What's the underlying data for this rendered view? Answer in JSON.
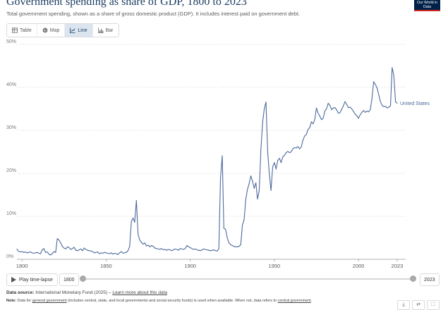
{
  "header": {
    "title": "Government spending as share of GDP, 1800 to 2023",
    "subtitle": "Total government spending, shown as a share of gross domestic product (GDP). It includes interest paid on government debt.",
    "logo": "Our World in Data"
  },
  "tabs": [
    {
      "label": "Table",
      "icon": "table-icon"
    },
    {
      "label": "Map",
      "icon": "globe-icon"
    },
    {
      "label": "Line",
      "icon": "line-chart-icon",
      "active": true
    },
    {
      "label": "Bar",
      "icon": "bar-chart-icon"
    }
  ],
  "chart_data": {
    "type": "line",
    "title": "Government spending as share of GDP, 1800 to 2023",
    "xlabel": "",
    "ylabel": "",
    "xlim": [
      1797,
      2023
    ],
    "ylim": [
      0,
      50
    ],
    "x_ticks": [
      "1800",
      "1850",
      "1900",
      "1950",
      "2000",
      "2023"
    ],
    "y_ticks": [
      "0%",
      "10%",
      "20%",
      "30%",
      "40%",
      "50%"
    ],
    "grid": true,
    "series": [
      {
        "name": "United States",
        "color": "#4c6a9c",
        "points": [
          [
            1797,
            2.4
          ],
          [
            1798,
            1.8
          ],
          [
            1799,
            1.7
          ],
          [
            1800,
            1.8
          ],
          [
            1801,
            1.6
          ],
          [
            1802,
            1.7
          ],
          [
            1803,
            1.5
          ],
          [
            1804,
            1.6
          ],
          [
            1805,
            1.7
          ],
          [
            1806,
            1.5
          ],
          [
            1807,
            1.4
          ],
          [
            1808,
            1.5
          ],
          [
            1809,
            1.6
          ],
          [
            1810,
            1.4
          ],
          [
            1811,
            1.3
          ],
          [
            1812,
            2.2
          ],
          [
            1813,
            2.5
          ],
          [
            1814,
            1.6
          ],
          [
            1815,
            1.7
          ],
          [
            1816,
            1.2
          ],
          [
            1817,
            1.0
          ],
          [
            1818,
            1.3
          ],
          [
            1819,
            1.8
          ],
          [
            1820,
            1.6
          ],
          [
            1821,
            4.8
          ],
          [
            1822,
            4.5
          ],
          [
            1823,
            3.8
          ],
          [
            1824,
            3.0
          ],
          [
            1825,
            2.6
          ],
          [
            1826,
            2.4
          ],
          [
            1827,
            2.9
          ],
          [
            1828,
            2.7
          ],
          [
            1829,
            2.3
          ],
          [
            1830,
            2.5
          ],
          [
            1831,
            2.8
          ],
          [
            1832,
            2.1
          ],
          [
            1833,
            2.0
          ],
          [
            1834,
            2.2
          ],
          [
            1835,
            2.4
          ],
          [
            1836,
            2.0
          ],
          [
            1837,
            2.6
          ],
          [
            1838,
            2.3
          ],
          [
            1839,
            2.1
          ],
          [
            1840,
            2.0
          ],
          [
            1841,
            1.9
          ],
          [
            1842,
            1.8
          ],
          [
            1843,
            1.5
          ],
          [
            1844,
            1.6
          ],
          [
            1845,
            1.7
          ],
          [
            1846,
            1.3
          ],
          [
            1847,
            1.5
          ],
          [
            1848,
            1.4
          ],
          [
            1849,
            1.6
          ],
          [
            1850,
            1.5
          ],
          [
            1851,
            1.4
          ],
          [
            1852,
            1.3
          ],
          [
            1853,
            1.5
          ],
          [
            1854,
            1.2
          ],
          [
            1855,
            1.4
          ],
          [
            1856,
            1.3
          ],
          [
            1857,
            1.1
          ],
          [
            1858,
            1.5
          ],
          [
            1859,
            1.8
          ],
          [
            1860,
            1.4
          ],
          [
            1861,
            1.5
          ],
          [
            1862,
            1.6
          ],
          [
            1863,
            2.0
          ],
          [
            1864,
            3.0
          ],
          [
            1865,
            8.8
          ],
          [
            1866,
            9.6
          ],
          [
            1867,
            8.6
          ],
          [
            1868,
            13.7
          ],
          [
            1869,
            5.8
          ],
          [
            1870,
            4.5
          ],
          [
            1871,
            3.9
          ],
          [
            1872,
            3.5
          ],
          [
            1873,
            3.8
          ],
          [
            1874,
            3.1
          ],
          [
            1875,
            3.3
          ],
          [
            1876,
            2.9
          ],
          [
            1877,
            3.2
          ],
          [
            1878,
            3.0
          ],
          [
            1879,
            2.6
          ],
          [
            1880,
            2.5
          ],
          [
            1881,
            2.4
          ],
          [
            1882,
            2.3
          ],
          [
            1883,
            2.5
          ],
          [
            1884,
            2.2
          ],
          [
            1885,
            2.3
          ],
          [
            1886,
            2.1
          ],
          [
            1887,
            2.3
          ],
          [
            1888,
            2.2
          ],
          [
            1889,
            2.0
          ],
          [
            1890,
            2.2
          ],
          [
            1891,
            2.4
          ],
          [
            1892,
            2.3
          ],
          [
            1893,
            2.1
          ],
          [
            1894,
            2.5
          ],
          [
            1895,
            2.4
          ],
          [
            1896,
            2.3
          ],
          [
            1897,
            2.5
          ],
          [
            1898,
            3.2
          ],
          [
            1899,
            2.9
          ],
          [
            1900,
            2.7
          ],
          [
            1901,
            2.5
          ],
          [
            1902,
            2.3
          ],
          [
            1903,
            2.4
          ],
          [
            1904,
            2.2
          ],
          [
            1905,
            2.1
          ],
          [
            1906,
            2.0
          ],
          [
            1907,
            2.2
          ],
          [
            1908,
            2.4
          ],
          [
            1909,
            2.3
          ],
          [
            1910,
            2.2
          ],
          [
            1911,
            2.1
          ],
          [
            1912,
            2.0
          ],
          [
            1913,
            2.1
          ],
          [
            1914,
            2.2
          ],
          [
            1915,
            2.0
          ],
          [
            1916,
            1.9
          ],
          [
            1917,
            2.5
          ],
          [
            1918,
            19.0
          ],
          [
            1919,
            24.1
          ],
          [
            1920,
            7.2
          ],
          [
            1921,
            7.0
          ],
          [
            1922,
            5.0
          ],
          [
            1923,
            3.8
          ],
          [
            1924,
            3.4
          ],
          [
            1925,
            3.2
          ],
          [
            1926,
            3.0
          ],
          [
            1927,
            2.9
          ],
          [
            1928,
            2.9
          ],
          [
            1929,
            3.0
          ],
          [
            1930,
            3.4
          ],
          [
            1931,
            8.0
          ],
          [
            1932,
            9.2
          ],
          [
            1933,
            14.0
          ],
          [
            1934,
            16.2
          ],
          [
            1935,
            17.6
          ],
          [
            1936,
            19.4
          ],
          [
            1937,
            18.2
          ],
          [
            1938,
            16.5
          ],
          [
            1939,
            17.8
          ],
          [
            1940,
            14.0
          ],
          [
            1941,
            16.0
          ],
          [
            1942,
            25.5
          ],
          [
            1943,
            31.8
          ],
          [
            1944,
            35.0
          ],
          [
            1945,
            36.6
          ],
          [
            1946,
            25.0
          ],
          [
            1947,
            20.0
          ],
          [
            1948,
            16.0
          ],
          [
            1949,
            21.5
          ],
          [
            1950,
            22.5
          ],
          [
            1951,
            21.0
          ],
          [
            1952,
            23.0
          ],
          [
            1953,
            23.5
          ],
          [
            1954,
            22.5
          ],
          [
            1955,
            23.8
          ],
          [
            1956,
            24.2
          ],
          [
            1957,
            24.8
          ],
          [
            1958,
            25.1
          ],
          [
            1959,
            24.8
          ],
          [
            1960,
            25.0
          ],
          [
            1961,
            25.7
          ],
          [
            1962,
            26.0
          ],
          [
            1963,
            25.9
          ],
          [
            1964,
            26.2
          ],
          [
            1965,
            25.7
          ],
          [
            1966,
            26.2
          ],
          [
            1967,
            27.7
          ],
          [
            1968,
            28.7
          ],
          [
            1969,
            29.0
          ],
          [
            1970,
            30.2
          ],
          [
            1971,
            30.6
          ],
          [
            1972,
            32.0
          ],
          [
            1973,
            31.5
          ],
          [
            1974,
            32.5
          ],
          [
            1975,
            35.2
          ],
          [
            1976,
            34.0
          ],
          [
            1977,
            33.3
          ],
          [
            1978,
            32.5
          ],
          [
            1979,
            32.8
          ],
          [
            1980,
            34.5
          ],
          [
            1981,
            35.0
          ],
          [
            1982,
            36.3
          ],
          [
            1983,
            35.8
          ],
          [
            1984,
            34.8
          ],
          [
            1985,
            35.2
          ],
          [
            1986,
            35.3
          ],
          [
            1987,
            34.8
          ],
          [
            1988,
            34.0
          ],
          [
            1989,
            34.1
          ],
          [
            1990,
            34.9
          ],
          [
            1991,
            35.7
          ],
          [
            1992,
            36.7
          ],
          [
            1993,
            36.0
          ],
          [
            1994,
            35.3
          ],
          [
            1995,
            35.4
          ],
          [
            1996,
            35.0
          ],
          [
            1997,
            34.4
          ],
          [
            1998,
            33.8
          ],
          [
            1999,
            33.4
          ],
          [
            2000,
            32.8
          ],
          [
            2001,
            33.6
          ],
          [
            2002,
            34.2
          ],
          [
            2003,
            34.6
          ],
          [
            2004,
            34.2
          ],
          [
            2005,
            34.5
          ],
          [
            2006,
            34.3
          ],
          [
            2007,
            34.8
          ],
          [
            2008,
            37.3
          ],
          [
            2009,
            41.3
          ],
          [
            2010,
            40.7
          ],
          [
            2011,
            39.9
          ],
          [
            2012,
            38.3
          ],
          [
            2013,
            36.7
          ],
          [
            2014,
            35.8
          ],
          [
            2015,
            35.5
          ],
          [
            2016,
            35.6
          ],
          [
            2017,
            35.2
          ],
          [
            2018,
            35.4
          ],
          [
            2019,
            35.7
          ],
          [
            2020,
            44.6
          ],
          [
            2021,
            42.8
          ],
          [
            2022,
            36.7
          ],
          [
            2023,
            36.3
          ]
        ]
      }
    ]
  },
  "timeline": {
    "play_label": "Play time-lapse",
    "start_year": "1800",
    "end_year": "2023"
  },
  "footer": {
    "source_label": "Data source:",
    "source_text": "International Monetary Fund (2025) –",
    "source_link": "Learn more about this data",
    "note_label": "Note:",
    "note_text_1": "Data for",
    "note_link_1": "general government",
    "note_text_2": "(includes central, state, and local governments and social security funds) is used when available. When not, data refers to",
    "note_link_2": "central government",
    "note_text_3": "."
  }
}
